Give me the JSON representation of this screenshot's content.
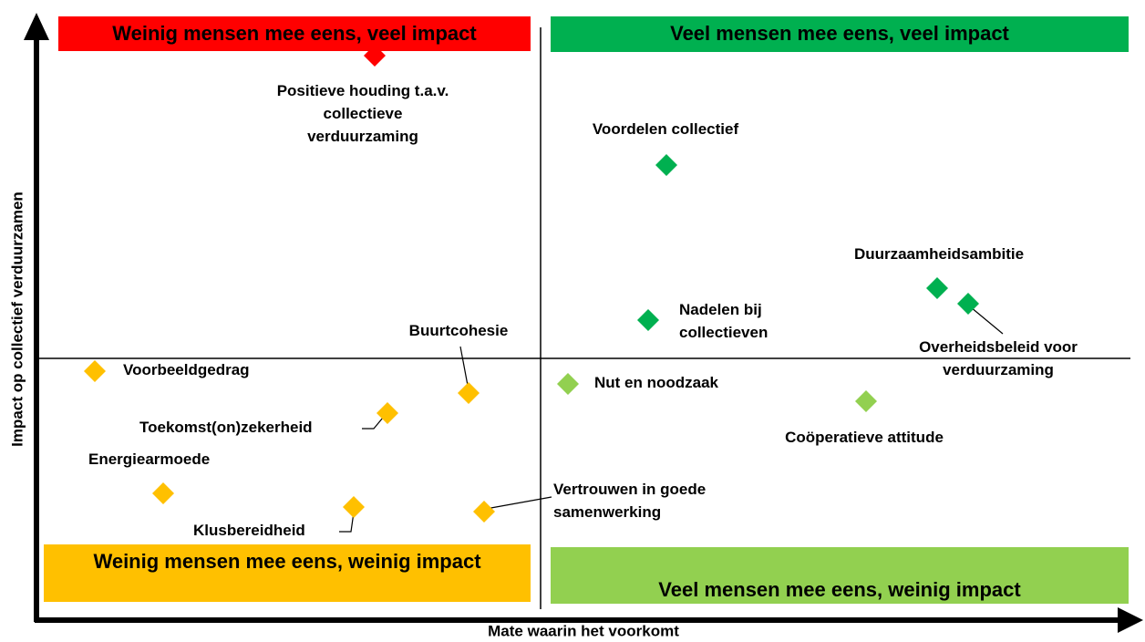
{
  "chart_data": {
    "type": "quadrant",
    "y_label": "Impact op collectief verduurzamen",
    "x_label": "Mate waarin het voorkomt",
    "quadrants": [
      "Weinig mensen mee eens, veel impact",
      "Veel mensen mee eens, veel impact",
      "Weinig mensen mee eens, weinig impact",
      "Veel mensen mee eens, weinig impact"
    ],
    "points": [
      {
        "lines": [
          "Positieve houding t.a.v.",
          "collectieve",
          "verduurzaming"
        ]
      },
      {
        "lines": [
          "Voordelen collectief"
        ]
      },
      {
        "lines": [
          "Nadelen bij",
          "collectieven"
        ]
      },
      {
        "lines": [
          "Duurzaamheidsambitie"
        ]
      },
      {
        "lines": [
          "Overheidsbeleid voor",
          "verduurzaming"
        ]
      },
      {
        "lines": [
          "Nut en noodzaak"
        ]
      },
      {
        "lines": [
          "Coöperatieve attitude"
        ]
      },
      {
        "lines": [
          "Voorbeeldgedrag"
        ]
      },
      {
        "lines": [
          "Buurtcohesie"
        ]
      },
      {
        "lines": [
          "Toekomst(on)zekerheid"
        ]
      },
      {
        "lines": [
          "Energiearmoede"
        ]
      },
      {
        "lines": [
          "Klusbereidheid"
        ]
      },
      {
        "lines": [
          "Vertrouwen in goede",
          "samenwerking"
        ]
      }
    ]
  }
}
